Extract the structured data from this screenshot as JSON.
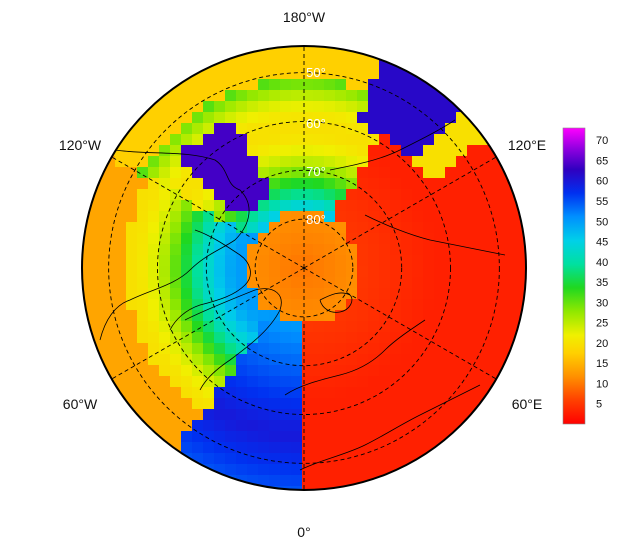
{
  "map": {
    "projection": "north polar stereographic",
    "longitude_labels": {
      "top": "180°W",
      "bottom": "0°",
      "upper_left": "120°W",
      "upper_right": "120°E",
      "lower_left": "60°W",
      "lower_right": "60°E"
    },
    "latitude_labels": [
      "50°",
      "60°",
      "70°",
      "80°"
    ],
    "graticule_style": "dashed"
  },
  "colorbar": {
    "ticks": [
      "70",
      "65",
      "60",
      "55",
      "50",
      "45",
      "40",
      "35",
      "30",
      "25",
      "20",
      "15",
      "10",
      "5"
    ],
    "range": [
      0,
      73
    ],
    "colors": [
      "#ff0000",
      "#ff5a00",
      "#ffa000",
      "#ffe600",
      "#c8f000",
      "#50e000",
      "#00d830",
      "#00e6a0",
      "#00d8e6",
      "#0090ff",
      "#0030f0",
      "#2a00c8",
      "#8000e0",
      "#e000f0"
    ]
  }
}
